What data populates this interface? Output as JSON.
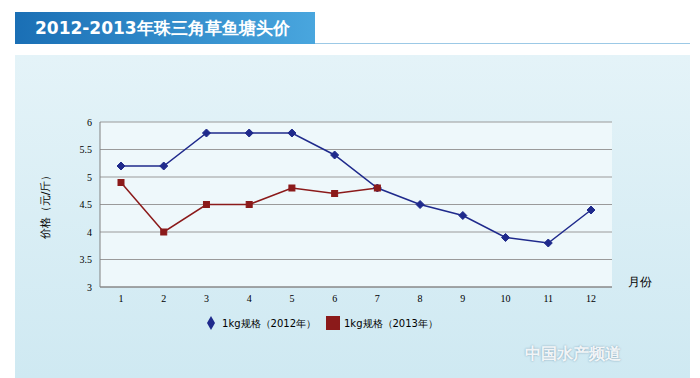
{
  "chart_data": {
    "type": "line",
    "title": "2012-2013年珠三角草鱼塘头价",
    "x_label": "月份",
    "y_label": "价格（元/斤）",
    "categories": [
      "1",
      "2",
      "3",
      "4",
      "5",
      "6",
      "7",
      "8",
      "9",
      "10",
      "11",
      "12"
    ],
    "series": [
      {
        "name": "1kg规格（2012年）",
        "color": "#1f2a8c",
        "marker": "diamond",
        "values": [
          5.2,
          5.2,
          5.8,
          5.8,
          5.8,
          5.4,
          4.8,
          4.5,
          4.3,
          3.9,
          3.8,
          4.4
        ]
      },
      {
        "name": "1kg规格（2013年）",
        "color": "#8b1a1a",
        "marker": "square",
        "values": [
          4.9,
          4.0,
          4.5,
          4.5,
          4.8,
          4.7,
          4.8,
          null,
          null,
          null,
          null,
          null
        ]
      }
    ],
    "ylim": [
      3,
      6
    ],
    "yticks": [
      3,
      3.5,
      4,
      4.5,
      5,
      5.5,
      6
    ],
    "grid": true,
    "legend": "bottom",
    "annotations": [
      "中国水产频道"
    ]
  }
}
